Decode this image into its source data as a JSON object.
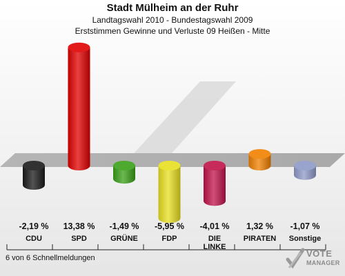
{
  "header": {
    "title": "Stadt Mülheim an der Ruhr",
    "subtitle": "Landtagswahl 2010 - Bundestagswahl 2009",
    "subtitle2": "Erststimmen Gewinne und Verluste 09 Heißen - Mitte"
  },
  "footer": {
    "note": "6 von 6 Schnellmeldungen"
  },
  "logo": {
    "line1": "VOTE",
    "line2": "MANAGER"
  },
  "chart_data": {
    "type": "bar",
    "title": "Stadt Mülheim an der Ruhr",
    "categories": [
      "CDU",
      "SPD",
      "GRÜNE",
      "FDP",
      "DIE LINKE",
      "PIRATEN",
      "Sonstige"
    ],
    "category_lines": [
      [
        "CDU"
      ],
      [
        "SPD"
      ],
      [
        "GRÜNE"
      ],
      [
        "FDP"
      ],
      [
        "DIE",
        "LINKE"
      ],
      [
        "PIRATEN"
      ],
      [
        "Sonstige"
      ]
    ],
    "values": [
      -2.19,
      13.38,
      -1.49,
      -5.95,
      -4.01,
      1.32,
      -1.07
    ],
    "value_labels": [
      "-2,19 %",
      "13,38 %",
      "-1,49 %",
      "-5,95 %",
      "-4,01 %",
      "1,32 %",
      "-1,07 %"
    ],
    "colors": [
      "#1a1a1a",
      "#e00000",
      "#3aa017",
      "#e8e020",
      "#c0134a",
      "#f08000",
      "#8e9ac8"
    ],
    "ylim": [
      -6,
      14
    ]
  }
}
